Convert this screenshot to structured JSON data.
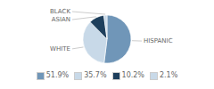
{
  "chart_data": {
    "type": "pie",
    "categories": [
      "HISPANIC",
      "WHITE",
      "ASIAN",
      "BLACK"
    ],
    "values": [
      51.9,
      35.7,
      10.2,
      2.1
    ],
    "value_labels": [
      "51.9%",
      "35.7%",
      "10.2%",
      "2.1%"
    ],
    "colors": [
      "#7096b8",
      "#c8d9e8",
      "#1e3f5c",
      "#c8d9e8"
    ],
    "legend": "bottom"
  }
}
